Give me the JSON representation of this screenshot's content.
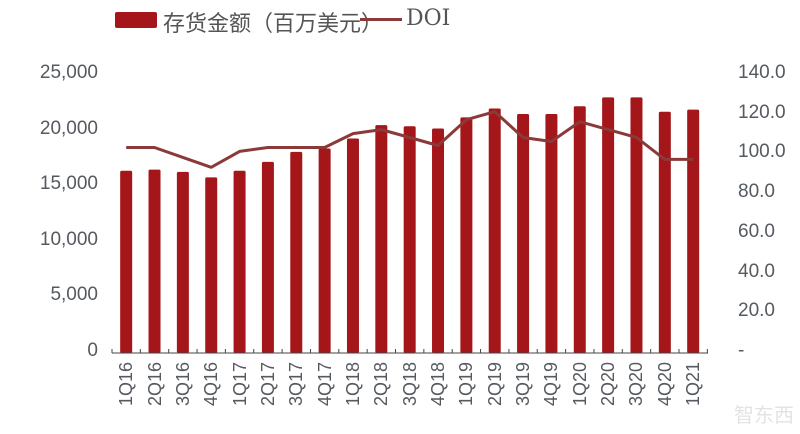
{
  "legend": {
    "bar_label": "存货金额（百万美元）",
    "line_label": "DOI"
  },
  "axes": {
    "left_ticks": [
      "25,000",
      "20,000",
      "15,000",
      "10,000",
      "5,000",
      "0"
    ],
    "right_ticks": [
      "140.0",
      "120.0",
      "100.0",
      "80.0",
      "60.0",
      "40.0",
      "20.0",
      "-"
    ]
  },
  "colors": {
    "bar": "#a5161a",
    "line": "#8b3a3a",
    "axis_text": "#555a60"
  },
  "watermark": "智东西",
  "chart_data": {
    "type": "bar+line",
    "title": "",
    "categories": [
      "1Q16",
      "2Q16",
      "3Q16",
      "4Q16",
      "1Q17",
      "2Q17",
      "3Q17",
      "4Q17",
      "1Q18",
      "2Q18",
      "3Q18",
      "4Q18",
      "1Q19",
      "2Q19",
      "3Q19",
      "4Q19",
      "1Q20",
      "2Q20",
      "3Q20",
      "4Q20",
      "1Q21"
    ],
    "series": [
      {
        "name": "存货金额（百万美元）",
        "type": "bar",
        "axis": "left",
        "values": [
          16300,
          16400,
          16200,
          15700,
          16300,
          17100,
          18000,
          18300,
          19200,
          20400,
          20300,
          20100,
          21100,
          21900,
          21400,
          21400,
          22100,
          22900,
          22900,
          21600,
          21800
        ]
      },
      {
        "name": "DOI",
        "type": "line",
        "axis": "right",
        "values": [
          103.0,
          103.0,
          98.0,
          93.0,
          101.0,
          103.0,
          103.0,
          103.0,
          110.0,
          112.0,
          108.0,
          104.0,
          117.0,
          121.0,
          108.0,
          106.0,
          116.0,
          112.0,
          108.0,
          97.0,
          97.0
        ]
      }
    ],
    "xlabel": "",
    "ylabel_left": "",
    "ylabel_right": "",
    "ylim_left": [
      0,
      25000
    ],
    "ylim_right": [
      0,
      140
    ],
    "grid": false,
    "legend_position": "top"
  }
}
